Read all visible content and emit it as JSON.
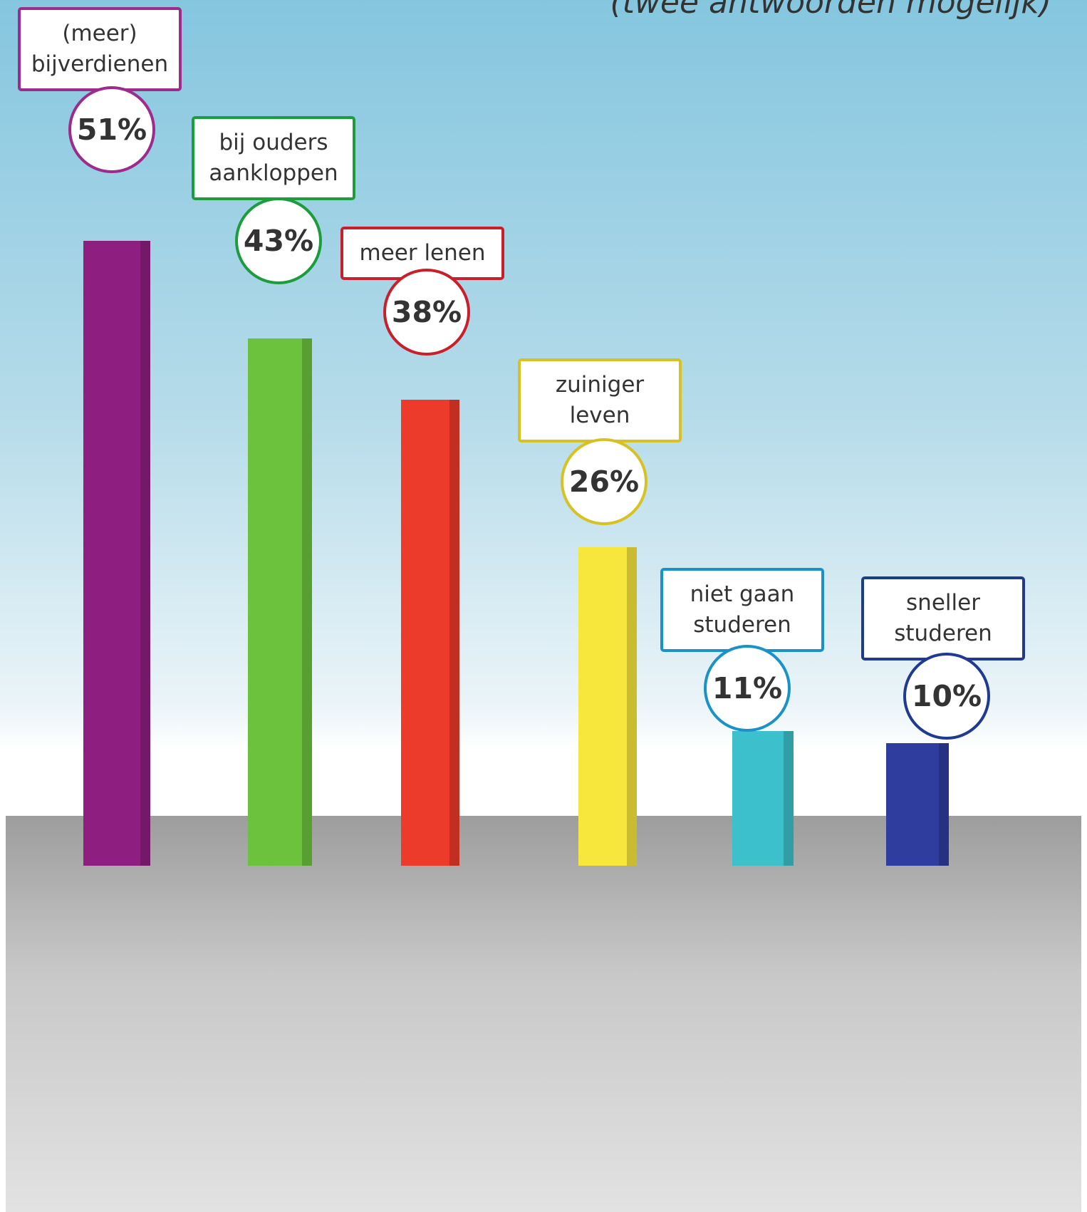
{
  "chart_data": {
    "type": "bar",
    "subtitle": "(twee antwoorden mogelijk)",
    "categories": [
      "(meer)\nbijverdienen",
      "bij ouders\naankloppen",
      "meer lenen",
      "zuiniger\nleven",
      "niet gaan\nstuderen",
      "sneller\nstuderen"
    ],
    "values": [
      51,
      43,
      38,
      26,
      11,
      10
    ],
    "value_labels": [
      "51%",
      "43%",
      "38%",
      "26%",
      "11%",
      "10%"
    ],
    "colors": [
      "#8e1f80",
      "#6cc23c",
      "#ec3a2b",
      "#f7e63c",
      "#3cc0cc",
      "#2f3e9e"
    ],
    "label_colors": [
      "#9c2b8c",
      "#1c9c3c",
      "#c8202a",
      "#d6c222",
      "#1a92c8",
      "#1f3a8f"
    ]
  }
}
